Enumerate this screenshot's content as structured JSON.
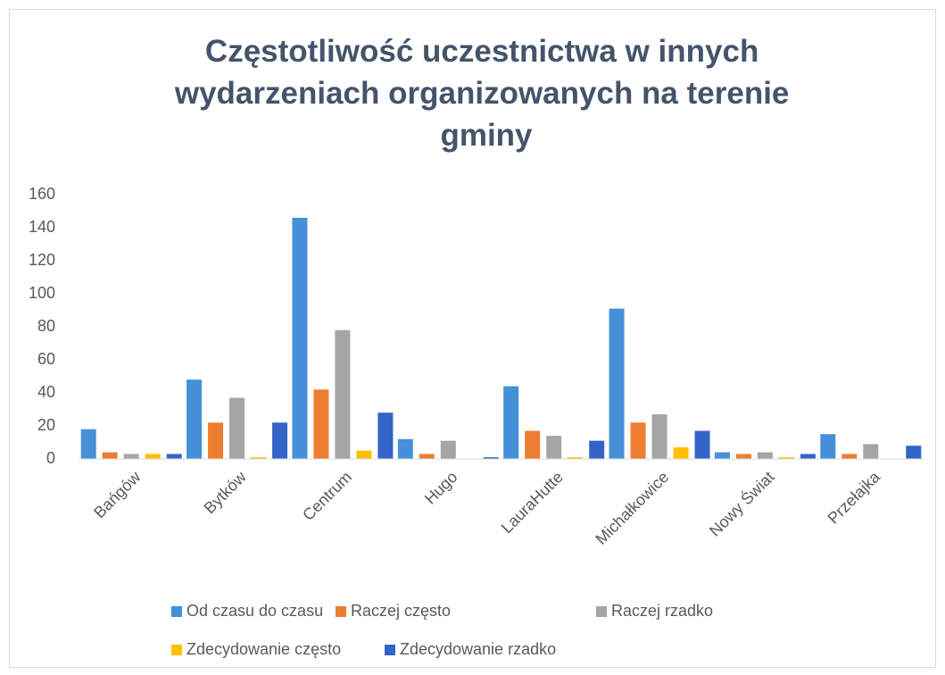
{
  "chart_data": {
    "type": "bar",
    "title": "Częstotliwość uczestnictwa w innych wydarzeniach organizowanych na terenie gminy",
    "categories": [
      "Bańgów",
      "Bytków",
      "Centrum",
      "Hugo",
      "LauraHutte",
      "Michałkowice",
      "Nowy Świat",
      "Przełajka"
    ],
    "series": [
      {
        "name": "Od czasu do czasu",
        "color": "#4590d8",
        "values": [
          18,
          48,
          146,
          12,
          44,
          91,
          4,
          15
        ]
      },
      {
        "name": "Raczej często",
        "color": "#ed7d31",
        "values": [
          4,
          22,
          42,
          3,
          17,
          22,
          3,
          3
        ]
      },
      {
        "name": "Raczej rzadko",
        "color": "#a5a5a5",
        "values": [
          3,
          37,
          78,
          11,
          14,
          27,
          4,
          9
        ]
      },
      {
        "name": "Zdecydowanie często",
        "color": "#ffc000",
        "values": [
          3,
          1,
          5,
          0,
          1,
          7,
          1,
          0
        ]
      },
      {
        "name": "Zdecydowanie rzadko",
        "color": "#3364c8",
        "values": [
          3,
          22,
          28,
          1,
          11,
          17,
          3,
          8
        ]
      }
    ],
    "ylim": [
      0,
      160
    ],
    "yticks": [
      0,
      20,
      40,
      60,
      80,
      100,
      120,
      140,
      160
    ],
    "grid": false
  }
}
